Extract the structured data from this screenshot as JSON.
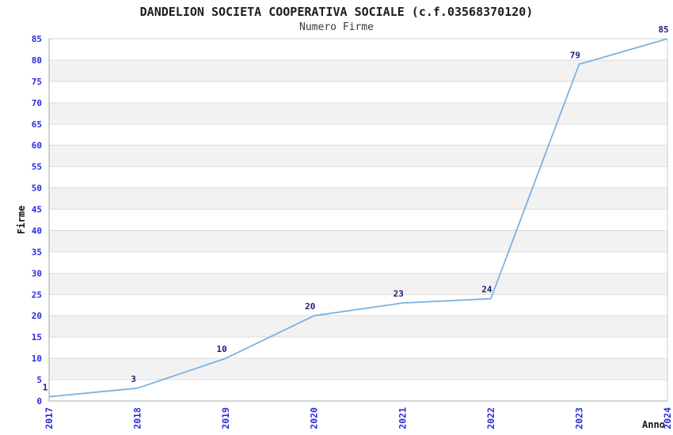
{
  "chart_data": {
    "type": "line",
    "title": "DANDELION SOCIETA COOPERATIVA SOCIALE (c.f.03568370120)",
    "subtitle": "Numero Firme",
    "xlabel": "Anno",
    "ylabel": "Firme",
    "categories": [
      "2017",
      "2018",
      "2019",
      "2020",
      "2021",
      "2022",
      "2023",
      "2024"
    ],
    "values": [
      1,
      3,
      10,
      20,
      23,
      24,
      79,
      85
    ],
    "data_labels": [
      "1",
      "3",
      "10",
      "20",
      "23",
      "24",
      "79",
      "85"
    ],
    "ylim": [
      0,
      85
    ],
    "ytick_step": 5,
    "grid": true,
    "legend": "none",
    "colors": {
      "line": "#7ab2e4",
      "tick_label": "#2b2bdf",
      "data_label": "#1e1e78",
      "band": "#f2f2f2",
      "gridline": "#dcdcdc",
      "border": "#cfcfcf",
      "axis": "#a8a8a8",
      "title": "#1c1c1c",
      "subtitle": "#3a3a3a",
      "background": "#ffffff"
    }
  }
}
